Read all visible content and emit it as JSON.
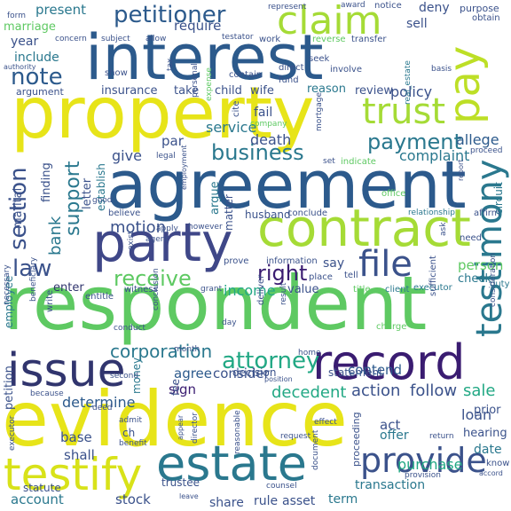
{
  "words": [
    {
      "text": "evidence",
      "color": "#e7e419"
    },
    {
      "text": "respondent",
      "color": "#5ec962"
    },
    {
      "text": "agreement",
      "color": "#2c5a8c"
    },
    {
      "text": "property",
      "color": "#e7e419"
    },
    {
      "text": "interest",
      "color": "#2c5a8c"
    },
    {
      "text": "party",
      "color": "#3f4788"
    },
    {
      "text": "contract",
      "color": "#a5db36"
    },
    {
      "text": "record",
      "color": "#3a1c71"
    },
    {
      "text": "estate",
      "color": "#2a788e"
    },
    {
      "text": "testify",
      "color": "#d8e219"
    },
    {
      "text": "issue",
      "color": "#31356e"
    },
    {
      "text": "pay",
      "color": "#bddf26"
    },
    {
      "text": "claim",
      "color": "#a5db36"
    },
    {
      "text": "trust",
      "color": "#a5db36"
    },
    {
      "text": "file",
      "color": "#3b528b"
    },
    {
      "text": "provide",
      "color": "#3b528b"
    },
    {
      "text": "petitioner",
      "color": "#2c5a8c"
    },
    {
      "text": "payment",
      "color": "#2a788e"
    },
    {
      "text": "business",
      "color": "#2a788e"
    },
    {
      "text": "receive",
      "color": "#5ec962"
    },
    {
      "text": "right",
      "color": "#3a1c71"
    },
    {
      "text": "attorney",
      "color": "#22a884"
    },
    {
      "text": "corporation",
      "color": "#2a788e"
    },
    {
      "text": "note",
      "color": "#2c5a8c"
    },
    {
      "text": "section",
      "color": "#3b528b"
    },
    {
      "text": "support",
      "color": "#2a788e"
    },
    {
      "text": "motion",
      "color": "#3b528b"
    },
    {
      "text": "law",
      "color": "#3b528b"
    },
    {
      "text": "bank",
      "color": "#2a788e"
    },
    {
      "text": "testimony",
      "color": "#2a788e"
    },
    {
      "text": "sale",
      "color": "#22a884"
    },
    {
      "text": "purchase",
      "color": "#22a884"
    },
    {
      "text": "decedent",
      "color": "#22a884"
    },
    {
      "text": "determine",
      "color": "#2c5a8c"
    },
    {
      "text": "action",
      "color": "#3b528b"
    },
    {
      "text": "follow",
      "color": "#3b528b"
    },
    {
      "text": "loan",
      "color": "#3b528b"
    },
    {
      "text": "allege",
      "color": "#2c5a8c"
    },
    {
      "text": "complaint",
      "color": "#2a788e"
    },
    {
      "text": "policy",
      "color": "#3b528b"
    },
    {
      "text": "present",
      "color": "#2a788e"
    },
    {
      "text": "marriage",
      "color": "#5ec962"
    },
    {
      "text": "year",
      "color": "#3b528b"
    },
    {
      "text": "include",
      "color": "#2a788e"
    },
    {
      "text": "require",
      "color": "#3b528b"
    },
    {
      "text": "service",
      "color": "#2a788e"
    },
    {
      "text": "death",
      "color": "#3b528b"
    },
    {
      "text": "give",
      "color": "#3b528b"
    },
    {
      "text": "fail",
      "color": "#3b528b"
    },
    {
      "text": "income",
      "color": "#22a884"
    },
    {
      "text": "contend",
      "color": "#2c5a8c"
    },
    {
      "text": "account",
      "color": "#2a788e"
    },
    {
      "text": "stock",
      "color": "#3b528b"
    },
    {
      "text": "share",
      "color": "#3b528b"
    },
    {
      "text": "rule",
      "color": "#3b528b"
    },
    {
      "text": "asset",
      "color": "#3b528b"
    },
    {
      "text": "term",
      "color": "#2a788e"
    },
    {
      "text": "agree",
      "color": "#2c5a8c"
    },
    {
      "text": "consider",
      "color": "#3b528b"
    },
    {
      "text": "sign",
      "color": "#3a1c71"
    },
    {
      "text": "decision",
      "color": "#3b528b"
    },
    {
      "text": "statement",
      "color": "#3b528b"
    },
    {
      "text": "person",
      "color": "#5ec962"
    },
    {
      "text": "check",
      "color": "#2a788e"
    },
    {
      "text": "say",
      "color": "#3b528b"
    },
    {
      "text": "enter",
      "color": "#31356e"
    },
    {
      "text": "value",
      "color": "#3b528b"
    },
    {
      "text": "deny",
      "color": "#3b528b"
    },
    {
      "text": "sell",
      "color": "#3b528b"
    },
    {
      "text": "petition",
      "color": "#3b528b"
    },
    {
      "text": "statute",
      "color": "#3b528b"
    },
    {
      "text": "shall",
      "color": "#3b528b"
    },
    {
      "text": "base",
      "color": "#3b528b"
    },
    {
      "text": "act",
      "color": "#3b528b"
    },
    {
      "text": "offer",
      "color": "#2a788e"
    },
    {
      "text": "date",
      "color": "#2a788e"
    },
    {
      "text": "hearing",
      "color": "#3b528b"
    },
    {
      "text": "prior",
      "color": "#3b528b"
    },
    {
      "text": "transaction",
      "color": "#2a788e"
    },
    {
      "text": "trustee",
      "color": "#3b528b"
    },
    {
      "text": "employee",
      "color": "#2a788e"
    },
    {
      "text": "marital",
      "color": "#3b528b"
    },
    {
      "text": "finding",
      "color": "#3b528b"
    },
    {
      "text": "letter",
      "color": "#3b528b"
    },
    {
      "text": "establish",
      "color": "#2a788e"
    },
    {
      "text": "argue",
      "color": "#2a788e"
    },
    {
      "text": "matter",
      "color": "#3b528b"
    },
    {
      "text": "money",
      "color": "#2a788e"
    },
    {
      "text": "circuit",
      "color": "#2a788e"
    },
    {
      "text": "husband",
      "color": "#3b528b"
    },
    {
      "text": "conclude",
      "color": "#3b528b"
    },
    {
      "text": "prove",
      "color": "#3b528b"
    },
    {
      "text": "information",
      "color": "#3b528b"
    },
    {
      "text": "place",
      "color": "#3b528b"
    },
    {
      "text": "tell",
      "color": "#3b528b"
    },
    {
      "text": "title",
      "color": "#5ec962"
    },
    {
      "text": "client",
      "color": "#2a788e"
    },
    {
      "text": "executor",
      "color": "#2a788e"
    },
    {
      "text": "duty",
      "color": "#2a788e"
    },
    {
      "text": "insurance",
      "color": "#3b528b"
    },
    {
      "text": "take",
      "color": "#3b528b"
    },
    {
      "text": "child",
      "color": "#3b528b"
    },
    {
      "text": "wife",
      "color": "#3b528b"
    },
    {
      "text": "reason",
      "color": "#2a788e"
    },
    {
      "text": "review",
      "color": "#3b528b"
    },
    {
      "text": "argument",
      "color": "#3b528b"
    },
    {
      "text": "show",
      "color": "#3b528b"
    },
    {
      "text": "fund",
      "color": "#3b528b"
    },
    {
      "text": "seek",
      "color": "#3b528b"
    },
    {
      "text": "direct",
      "color": "#3b528b"
    },
    {
      "text": "involve",
      "color": "#3b528b"
    },
    {
      "text": "notice",
      "color": "#3b528b"
    },
    {
      "text": "purpose",
      "color": "#3b528b"
    },
    {
      "text": "obtain",
      "color": "#3b528b"
    },
    {
      "text": "transfer",
      "color": "#3b528b"
    },
    {
      "text": "reverse",
      "color": "#5ec962"
    },
    {
      "text": "work",
      "color": "#3b528b"
    },
    {
      "text": "testator",
      "color": "#3b528b"
    },
    {
      "text": "allow",
      "color": "#3b528b"
    },
    {
      "text": "subject",
      "color": "#3b528b"
    },
    {
      "text": "concern",
      "color": "#3b528b"
    },
    {
      "text": "form",
      "color": "#3b528b"
    },
    {
      "text": "represent",
      "color": "#3b528b"
    },
    {
      "text": "award",
      "color": "#3b528b"
    },
    {
      "text": "authority",
      "color": "#3b528b"
    },
    {
      "text": "personal",
      "color": "#3b528b"
    },
    {
      "text": "expense",
      "color": "#5ec962"
    },
    {
      "text": "contain",
      "color": "#3b528b"
    },
    {
      "text": "real_estate",
      "color": "#2a788e"
    },
    {
      "text": "basis",
      "color": "#3b528b"
    },
    {
      "text": "tax",
      "color": "#3b528b"
    },
    {
      "text": "cite",
      "color": "#3b528b"
    },
    {
      "text": "company",
      "color": "#5ec962"
    },
    {
      "text": "mortgage",
      "color": "#3b528b"
    },
    {
      "text": "indicate",
      "color": "#5ec962"
    },
    {
      "text": "set",
      "color": "#3b528b"
    },
    {
      "text": "proceed",
      "color": "#3b528b"
    },
    {
      "text": "office",
      "color": "#5ec962"
    },
    {
      "text": "report",
      "color": "#3b528b"
    },
    {
      "text": "relationship",
      "color": "#2a788e"
    },
    {
      "text": "affirm",
      "color": "#3b528b"
    },
    {
      "text": "need",
      "color": "#3b528b"
    },
    {
      "text": "ask",
      "color": "#3b528b"
    },
    {
      "text": "par",
      "color": "#3b528b"
    },
    {
      "text": "legal",
      "color": "#3b528b"
    },
    {
      "text": "good",
      "color": "#3b528b"
    },
    {
      "text": "believe",
      "color": "#3b528b"
    },
    {
      "text": "employment",
      "color": "#3b528b"
    },
    {
      "text": "however",
      "color": "#3b528b"
    },
    {
      "text": "apply",
      "color": "#3b528b"
    },
    {
      "text": "agent",
      "color": "#3b528b"
    },
    {
      "text": "exist",
      "color": "#3b528b"
    },
    {
      "text": "entitle",
      "color": "#3b528b"
    },
    {
      "text": "witness",
      "color": "#3b528b"
    },
    {
      "text": "grant",
      "color": "#3b528b"
    },
    {
      "text": "deliver",
      "color": "#3b528b"
    },
    {
      "text": "result",
      "color": "#3b528b"
    },
    {
      "text": "charge",
      "color": "#5ec962"
    },
    {
      "text": "sufficient",
      "color": "#3b528b"
    },
    {
      "text": "consideration",
      "color": "#3b528b"
    },
    {
      "text": "necessary",
      "color": "#3b528b"
    },
    {
      "text": "beneficiary",
      "color": "#3b528b"
    },
    {
      "text": "write",
      "color": "#3b528b"
    },
    {
      "text": "conduct",
      "color": "#3b528b"
    },
    {
      "text": "month",
      "color": "#3b528b"
    },
    {
      "text": "conclusion",
      "color": "#3b528b"
    },
    {
      "text": "day",
      "color": "#3b528b"
    },
    {
      "text": "home",
      "color": "#3b528b"
    },
    {
      "text": "position",
      "color": "#3b528b"
    },
    {
      "text": "second",
      "color": "#3b528b"
    },
    {
      "text": "because",
      "color": "#3b528b"
    },
    {
      "text": "effect",
      "color": "#3b528b"
    },
    {
      "text": "executor",
      "color": "#3b528b"
    },
    {
      "text": "admit",
      "color": "#3b528b"
    },
    {
      "text": "deed",
      "color": "#3b528b"
    },
    {
      "text": "ch",
      "color": "#3b528b"
    },
    {
      "text": "benefit",
      "color": "#3b528b"
    },
    {
      "text": "director",
      "color": "#3b528b"
    },
    {
      "text": "appear",
      "color": "#3b528b"
    },
    {
      "text": "reasonable",
      "color": "#3b528b"
    },
    {
      "text": "request",
      "color": "#3b528b"
    },
    {
      "text": "return",
      "color": "#3b528b"
    },
    {
      "text": "document",
      "color": "#3b528b"
    },
    {
      "text": "proceeding",
      "color": "#3b528b"
    },
    {
      "text": "provision",
      "color": "#3b528b"
    },
    {
      "text": "counsel",
      "color": "#3b528b"
    },
    {
      "text": "leave",
      "color": "#3b528b"
    },
    {
      "text": "know",
      "color": "#3b528b"
    },
    {
      "text": "accord",
      "color": "#3b528b"
    },
    {
      "text": "fee",
      "color": "#3b528b"
    }
  ]
}
